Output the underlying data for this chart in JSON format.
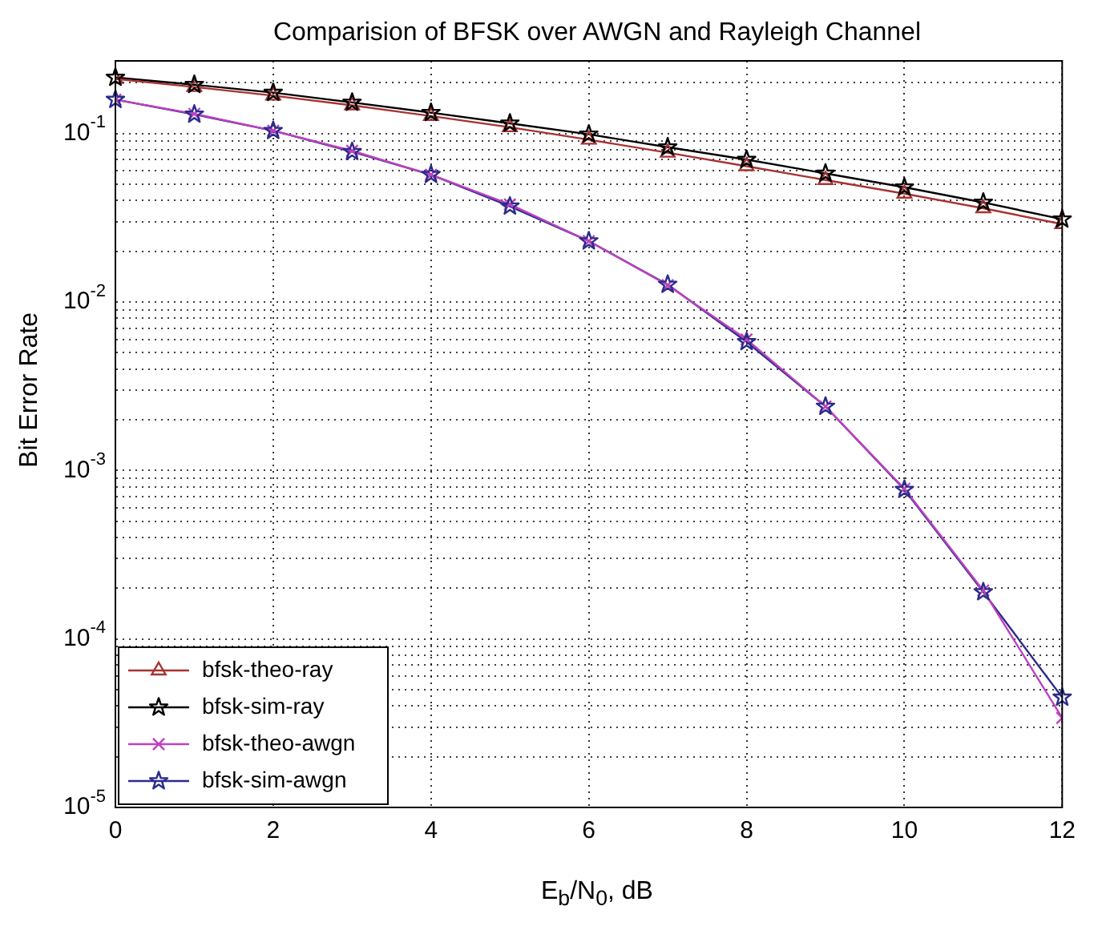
{
  "chart_data": {
    "type": "line",
    "title": "Comparision of BFSK over AWGN and Rayleigh Channel",
    "xlabel": "E$_{b}$/N$_{0}$, dB",
    "ylabel": "Bit Error Rate",
    "x": [
      0,
      1,
      2,
      3,
      4,
      5,
      6,
      7,
      8,
      9,
      10,
      11,
      12
    ],
    "xlim": [
      0,
      12
    ],
    "xticks": [
      0,
      2,
      4,
      6,
      8,
      10,
      12
    ],
    "ylim": [
      1e-05,
      0.27
    ],
    "log": true,
    "grid": true,
    "legend": "bottom left",
    "yticks": [
      {
        "value": 1e-05,
        "label": "10$^{-5}$"
      },
      {
        "value": 2e-05,
        "label": null
      },
      {
        "value": 3e-05,
        "label": null
      },
      {
        "value": 4e-05,
        "label": null
      },
      {
        "value": 5e-05,
        "label": null
      },
      {
        "value": 6e-05,
        "label": null
      },
      {
        "value": 7e-05,
        "label": null
      },
      {
        "value": 8e-05,
        "label": null
      },
      {
        "value": 9e-05,
        "label": null
      },
      {
        "value": 0.0001,
        "label": "10$^{-4}$"
      },
      {
        "value": 0.0002,
        "label": null
      },
      {
        "value": 0.0003,
        "label": null
      },
      {
        "value": 0.0004,
        "label": null
      },
      {
        "value": 0.0005,
        "label": null
      },
      {
        "value": 0.0006,
        "label": null
      },
      {
        "value": 0.0007,
        "label": null
      },
      {
        "value": 0.0008,
        "label": null
      },
      {
        "value": 0.0009,
        "label": null
      },
      {
        "value": 0.001,
        "label": "10$^{-3}$"
      },
      {
        "value": 0.002,
        "label": null
      },
      {
        "value": 0.003,
        "label": null
      },
      {
        "value": 0.004,
        "label": null
      },
      {
        "value": 0.005,
        "label": null
      },
      {
        "value": 0.006,
        "label": null
      },
      {
        "value": 0.007,
        "label": null
      },
      {
        "value": 0.008,
        "label": null
      },
      {
        "value": 0.009,
        "label": null
      },
      {
        "value": 0.01,
        "label": "10$^{-2}$"
      },
      {
        "value": 0.02,
        "label": null
      },
      {
        "value": 0.03,
        "label": null
      },
      {
        "value": 0.04,
        "label": null
      },
      {
        "value": 0.05,
        "label": null
      },
      {
        "value": 0.06,
        "label": null
      },
      {
        "value": 0.07,
        "label": null
      },
      {
        "value": 0.08,
        "label": null
      },
      {
        "value": 0.09,
        "label": null
      },
      {
        "value": 0.1,
        "label": "10$^{-1}$"
      },
      {
        "value": 0.2,
        "label": null
      }
    ],
    "series": [
      {
        "name": "bfsk-theo-ray",
        "color": "#a83232",
        "marker": "triangle",
        "values": [
          0.211,
          0.189,
          0.168,
          0.147,
          0.127,
          0.109,
          0.092,
          0.077,
          0.064,
          0.053,
          0.044,
          0.036,
          0.029
        ]
      },
      {
        "name": "bfsk-sim-ray",
        "color": "#000000",
        "marker": "star",
        "values": [
          0.215,
          0.195,
          0.175,
          0.153,
          0.133,
          0.115,
          0.099,
          0.083,
          0.07,
          0.058,
          0.048,
          0.039,
          0.031
        ]
      },
      {
        "name": "bfsk-theo-awgn",
        "color": "#c040c0",
        "marker": "cross",
        "values": [
          0.159,
          0.131,
          0.104,
          0.079,
          0.057,
          0.038,
          0.023,
          0.0126,
          0.006,
          0.0024,
          0.00078,
          0.000194,
          3.4e-05
        ]
      },
      {
        "name": "bfsk-sim-awgn",
        "color": "#2b2b8c",
        "marker": "star",
        "values": [
          0.159,
          0.13,
          0.104,
          0.078,
          0.057,
          0.037,
          0.023,
          0.0127,
          0.0058,
          0.0024,
          0.00077,
          0.00019,
          4.5e-05
        ]
      }
    ]
  }
}
